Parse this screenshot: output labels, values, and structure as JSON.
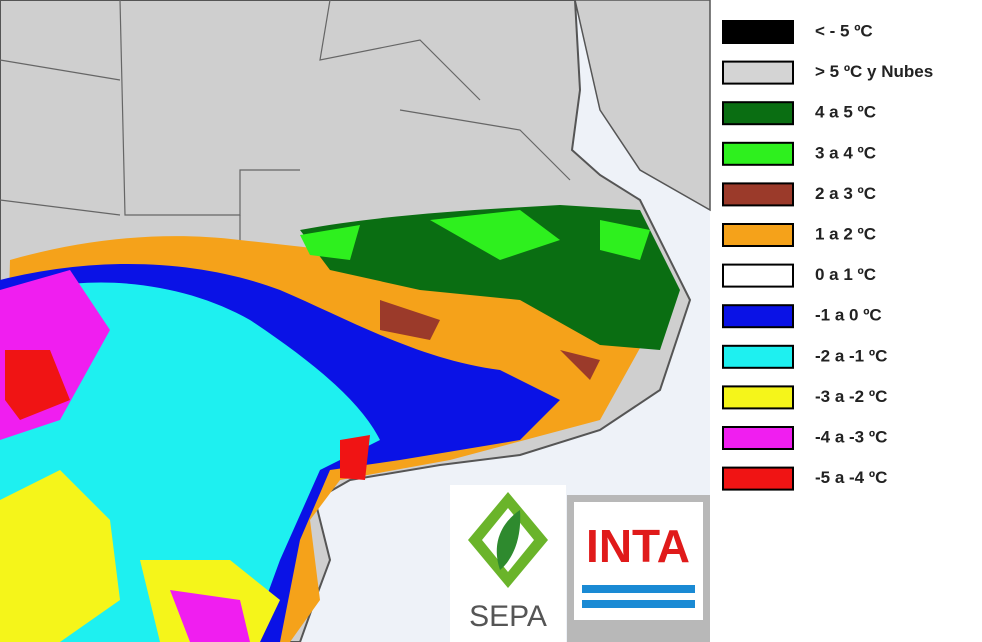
{
  "legend": {
    "items": [
      {
        "label": "< - 5 ºC",
        "color": "#000000"
      },
      {
        "label": "> 5 ºC y Nubes",
        "color": "#d4d4d4"
      },
      {
        "label": "4 a 5 ºC",
        "color": "#0a6e12"
      },
      {
        "label": "3 a 4 ºC",
        "color": "#2ef01e"
      },
      {
        "label": "2 a 3 ºC",
        "color": "#9b3a2a"
      },
      {
        "label": "1 a 2 ºC",
        "color": "#f5a21a"
      },
      {
        "label": "0 a 1 ºC",
        "color": "#ffffff"
      },
      {
        "label": "-1 a 0 ºC",
        "color": "#0a12e6"
      },
      {
        "label": "-2 a -1 ºC",
        "color": "#1ef0f0"
      },
      {
        "label": "-3 a -2 ºC",
        "color": "#f5f51a"
      },
      {
        "label": "-4 a -3 ºC",
        "color": "#f01ef0"
      },
      {
        "label": "-5 a -4 ºC",
        "color": "#f01414"
      }
    ]
  },
  "logos": {
    "sepa": "SEPA",
    "inta": "INTA"
  }
}
